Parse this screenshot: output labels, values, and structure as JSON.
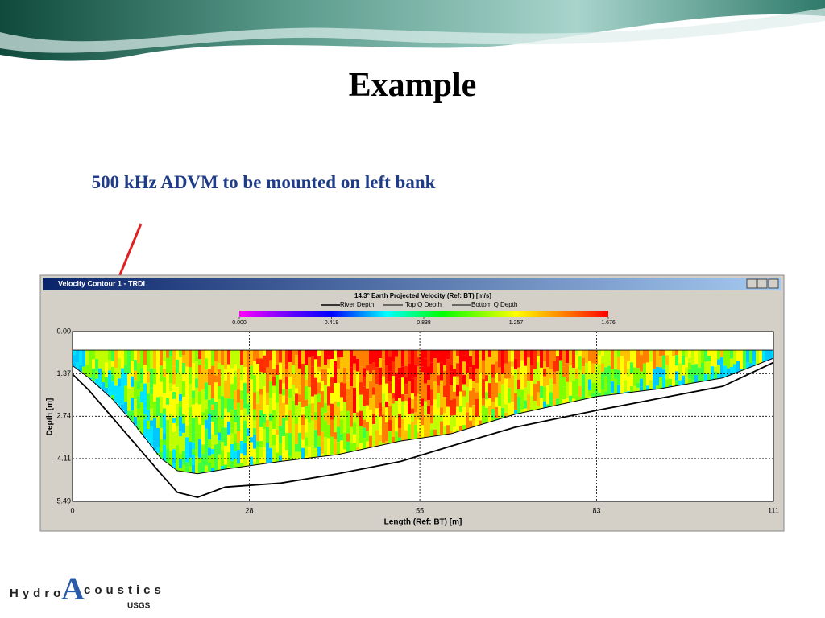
{
  "slide": {
    "title": "Example",
    "annotation": "500 kHz ADVM to be mounted on left bank"
  },
  "window": {
    "title": "Velocity Contour 1 - TRDI"
  },
  "chart_data": {
    "type": "contour",
    "title": "14.3° Earth Projected Velocity (Ref: BT) [m/s]",
    "x_label": "Length (Ref: BT) [m]",
    "y_label": "Depth [m]",
    "xlim": [
      0,
      111
    ],
    "xticks": [
      0,
      28,
      55,
      83,
      111
    ],
    "ylim": [
      0,
      5.49
    ],
    "y_inverted": true,
    "yticks": [
      {
        "value": 0,
        "label": "0.00"
      },
      1.37,
      2.74,
      4.11,
      5.49
    ],
    "grid": true,
    "colorbar": {
      "lim": [
        0,
        1.676
      ],
      "ticks": [
        {
          "value": 0,
          "label": "0.000"
        },
        0.419,
        0.838,
        1.257,
        1.676
      ]
    },
    "x": [
      0,
      2.6,
      6.4,
      10.2,
      14,
      16.6,
      19.8,
      24.2,
      33,
      42,
      52,
      60,
      70,
      83,
      93,
      103,
      111
    ],
    "series": [
      {
        "name": "River Depth",
        "color": "#000000",
        "values": [
          1.38,
          1.9,
          2.8,
          3.7,
          4.6,
          5.2,
          5.36,
          5.03,
          4.9,
          4.6,
          4.2,
          3.7,
          3.1,
          2.55,
          2.16,
          1.77,
          1.0
        ]
      },
      {
        "name": "Top Q Depth",
        "color": "#000000",
        "values": [
          0.6,
          0.6,
          0.6,
          0.6,
          0.6,
          0.6,
          0.6,
          0.6,
          0.6,
          0.6,
          0.6,
          0.6,
          0.6,
          0.6,
          0.6,
          0.6,
          0.6
        ]
      },
      {
        "name": "Bottom Q Depth",
        "color": "#000000",
        "values": [
          1.1,
          1.5,
          2.2,
          3.1,
          4.1,
          4.5,
          4.6,
          4.45,
          4.2,
          3.98,
          3.54,
          3.3,
          2.68,
          2.1,
          1.85,
          1.5,
          0.86
        ]
      }
    ]
  },
  "logo": {
    "left": "Hydro",
    "letter": "A",
    "right": "coustics",
    "agency": "USGS"
  }
}
